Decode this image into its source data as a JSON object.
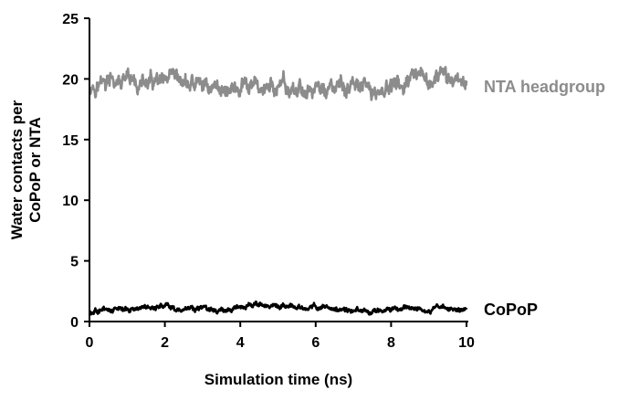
{
  "chart_data": {
    "type": "line",
    "title": "",
    "xlabel": "Simulation time (ns)",
    "ylabel_lines": [
      "Water contacts per",
      "CoPoP or NTA"
    ],
    "xlim": [
      0,
      10
    ],
    "ylim": [
      0,
      25
    ],
    "x_ticks": [
      0,
      2,
      4,
      6,
      8,
      10
    ],
    "y_ticks": [
      0,
      5,
      10,
      15,
      20,
      25
    ],
    "grid": false,
    "legend": "inline labels at right end of each series",
    "series": [
      {
        "name": "NTA headgroup",
        "color": "#8c8c8c",
        "x": [
          0,
          0.5,
          1,
          1.5,
          2,
          2.5,
          3,
          3.5,
          4,
          4.5,
          5,
          5.5,
          6,
          6.5,
          7,
          7.5,
          8,
          8.5,
          9,
          9.5,
          10
        ],
        "y": [
          19.6,
          19.7,
          19.5,
          19.6,
          19.4,
          19.6,
          19.5,
          19.3,
          19.1,
          19.3,
          19.2,
          19.0,
          19.2,
          19.1,
          19.3,
          18.9,
          19.3,
          19.6,
          19.8,
          20.0,
          20.1
        ]
      },
      {
        "name": "CoPoP",
        "color": "#000000",
        "x": [
          0,
          0.5,
          1,
          1.5,
          2,
          2.5,
          3,
          3.5,
          4,
          4.5,
          5,
          5.5,
          6,
          6.5,
          7,
          7.5,
          8,
          8.5,
          9,
          9.5,
          10
        ],
        "y": [
          0.9,
          1.0,
          1.0,
          1.1,
          1.2,
          1.1,
          1.1,
          0.9,
          1.2,
          1.3,
          1.3,
          1.2,
          1.2,
          1.1,
          1.0,
          0.9,
          1.0,
          1.1,
          1.0,
          1.1,
          1.1
        ]
      }
    ]
  }
}
